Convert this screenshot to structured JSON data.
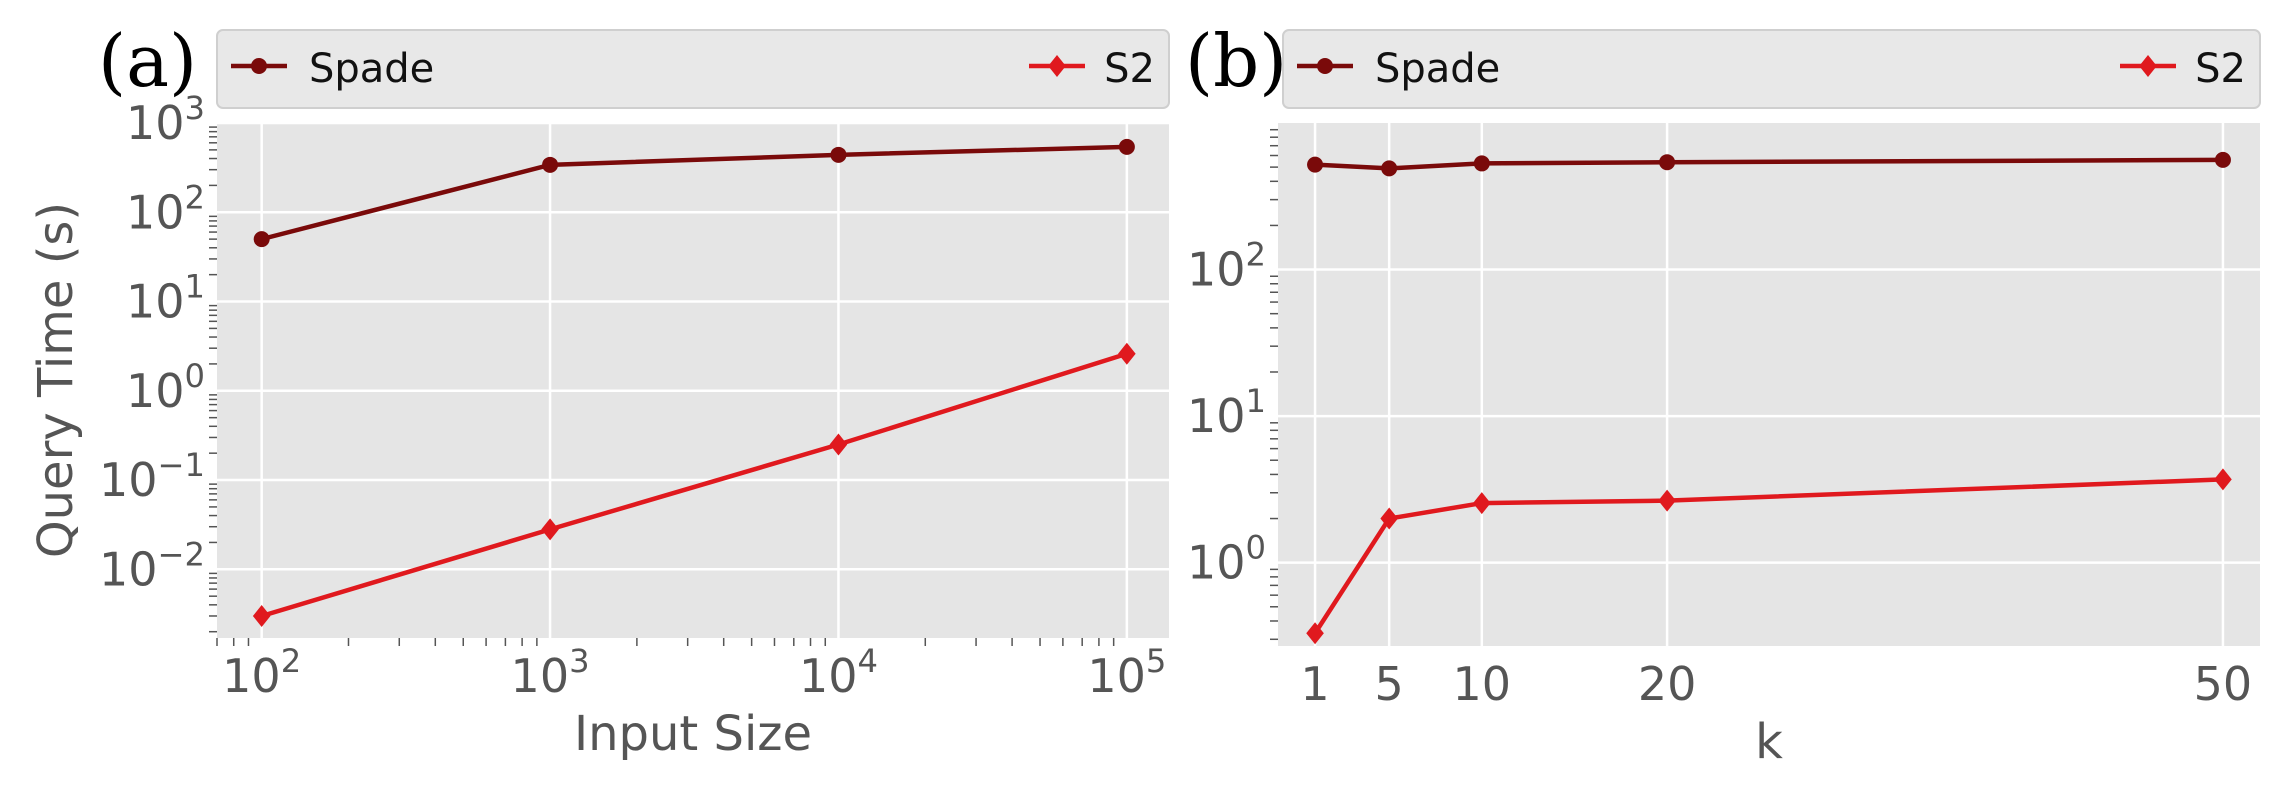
{
  "chart_data": [
    {
      "panel_label": "(a)",
      "type": "line",
      "xlabel": "Input Size",
      "ylabel": "Query Time (s)",
      "xscale": "log",
      "yscale": "log",
      "xlim": [
        70,
        140000
      ],
      "ylim": [
        0.0017,
        1000
      ],
      "x_ticks": [
        {
          "value": 100,
          "base": "10",
          "exp": "2"
        },
        {
          "value": 1000,
          "base": "10",
          "exp": "3"
        },
        {
          "value": 10000,
          "base": "10",
          "exp": "4"
        },
        {
          "value": 100000,
          "base": "10",
          "exp": "5"
        }
      ],
      "y_ticks": [
        {
          "value": 0.01,
          "base": "10",
          "exp": "−2"
        },
        {
          "value": 0.1,
          "base": "10",
          "exp": "−1"
        },
        {
          "value": 1,
          "base": "10",
          "exp": "0"
        },
        {
          "value": 10,
          "base": "10",
          "exp": "1"
        },
        {
          "value": 100,
          "base": "10",
          "exp": "2"
        },
        {
          "value": 1000,
          "base": "10",
          "exp": "3"
        }
      ],
      "grid": true,
      "legend_position": "top",
      "x": [
        100,
        1000,
        10000,
        100000
      ],
      "series": [
        {
          "name": "Spade",
          "color": "#7a0a0a",
          "marker": "circle",
          "values": [
            50,
            340,
            440,
            540
          ]
        },
        {
          "name": "S2",
          "color": "#e0191e",
          "marker": "diamond",
          "values": [
            0.003,
            0.028,
            0.25,
            2.6
          ]
        }
      ]
    },
    {
      "panel_label": "(b)",
      "type": "line",
      "xlabel": "k",
      "ylabel": "",
      "xscale": "linear",
      "yscale": "log",
      "xlim": [
        -1,
        52
      ],
      "ylim": [
        0.27,
        1000
      ],
      "x_ticks": [
        {
          "value": 1,
          "label": "1"
        },
        {
          "value": 5,
          "label": "5"
        },
        {
          "value": 10,
          "label": "10"
        },
        {
          "value": 20,
          "label": "20"
        },
        {
          "value": 50,
          "label": "50"
        }
      ],
      "y_ticks": [
        {
          "value": 1,
          "base": "10",
          "exp": "0"
        },
        {
          "value": 10,
          "base": "10",
          "exp": "1"
        },
        {
          "value": 100,
          "base": "10",
          "exp": "2"
        }
      ],
      "grid": true,
      "legend_position": "top",
      "x": [
        1,
        5,
        10,
        20,
        50
      ],
      "series": [
        {
          "name": "Spade",
          "color": "#7a0a0a",
          "marker": "circle",
          "values": [
            520,
            490,
            530,
            540,
            560
          ]
        },
        {
          "name": "S2",
          "color": "#e0191e",
          "marker": "diamond",
          "values": [
            0.33,
            2.0,
            2.55,
            2.65,
            3.7
          ]
        }
      ]
    }
  ]
}
